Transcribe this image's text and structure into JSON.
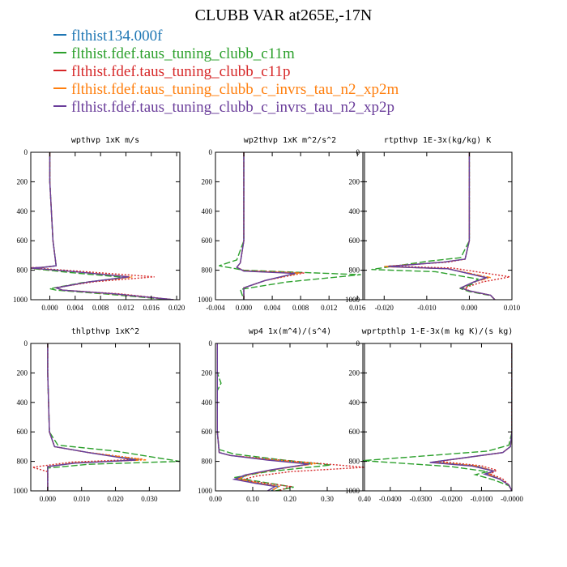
{
  "title": "CLUBB VAR at265E,-17N",
  "legend": [
    {
      "label": "flthist134.000f",
      "color": "#1f77b4"
    },
    {
      "label": "flthist.fdef.taus_tuning_clubb_c11m",
      "color": "#2ca02c"
    },
    {
      "label": "flthist.fdef.taus_tuning_clubb_c11p",
      "color": "#d62728"
    },
    {
      "label": "flthist.fdef.taus_tuning_clubb_c_invrs_tau_n2_xp2m",
      "color": "#ff7f0e"
    },
    {
      "label": "flthist.fdef.taus_tuning_clubb_c_invrs_tau_n2_xp2p",
      "color": "#6a3d9a"
    }
  ],
  "chart_data": [
    {
      "type": "line",
      "title": "wpthvp  1xK m/s",
      "xlim": [
        -0.003,
        0.0205
      ],
      "ylim": [
        0,
        1000
      ],
      "xticks": [
        0.0,
        0.004,
        0.008,
        0.012,
        0.016,
        0.02
      ],
      "xtick_labels": [
        "0.000",
        "0.004",
        "0.008",
        "0.012",
        "0.016",
        "0.020"
      ],
      "yticks": [
        0,
        200,
        400,
        600,
        800,
        1000
      ],
      "series": [
        {
          "x": [
            0.0,
            0.0,
            0.0005,
            0.001,
            -0.001,
            -0.003,
            0.004,
            0.0125,
            0.006,
            0.001,
            0.002,
            0.01,
            0.0195
          ],
          "y": [
            0,
            200,
            600,
            770,
            780,
            785,
            810,
            845,
            880,
            920,
            935,
            960,
            1000
          ]
        },
        {
          "x": [
            0.0,
            0.0,
            0.0005,
            0.001,
            -0.001,
            -0.003,
            0.003,
            0.012,
            0.005,
            0.0,
            0.001,
            0.009,
            0.019
          ],
          "y": [
            0,
            200,
            600,
            770,
            780,
            788,
            815,
            850,
            885,
            925,
            935,
            962,
            1000
          ]
        },
        {
          "x": [
            0.0,
            0.0,
            0.0005,
            0.001,
            -0.001,
            -0.003,
            0.005,
            0.0165,
            0.007,
            0.001,
            0.002,
            0.011,
            0.0195
          ],
          "y": [
            0,
            200,
            600,
            770,
            780,
            783,
            808,
            845,
            878,
            918,
            935,
            960,
            1000
          ]
        },
        {
          "x": [
            0.0,
            0.0,
            0.0005,
            0.001,
            -0.001,
            -0.003,
            0.004,
            0.013,
            0.006,
            0.001,
            0.002,
            0.01,
            0.0195
          ],
          "y": [
            0,
            200,
            600,
            770,
            780,
            786,
            810,
            846,
            880,
            920,
            935,
            961,
            1000
          ]
        },
        {
          "x": [
            0.0,
            0.0,
            0.0005,
            0.001,
            -0.001,
            -0.003,
            0.004,
            0.0125,
            0.006,
            0.001,
            0.002,
            0.01,
            0.0195
          ],
          "y": [
            0,
            200,
            600,
            770,
            780,
            785,
            810,
            845,
            880,
            920,
            935,
            960,
            1000
          ]
        }
      ]
    },
    {
      "type": "line",
      "title": "wp2thvp  1xK m^2/s^2",
      "xlim": [
        -0.004,
        0.017
      ],
      "ylim": [
        0,
        1000
      ],
      "xticks": [
        -0.004,
        0.0,
        0.004,
        0.008,
        0.012,
        0.016
      ],
      "xtick_labels": [
        "-0.004",
        "0.000",
        "0.004",
        "0.008",
        "0.012",
        "0.016"
      ],
      "yticks": [
        0,
        200,
        400,
        600,
        800,
        1000
      ],
      "series": [
        {
          "x": [
            0.0,
            0.0,
            0.0,
            -0.0005,
            -0.001,
            0.0,
            0.0075,
            0.003,
            0.0,
            0.0
          ],
          "y": [
            0,
            200,
            600,
            750,
            780,
            805,
            820,
            870,
            920,
            1000
          ]
        },
        {
          "x": [
            0.0,
            0.0,
            0.0,
            -0.001,
            -0.0035,
            0.0,
            0.0165,
            0.006,
            -0.0005,
            0.0
          ],
          "y": [
            0,
            200,
            600,
            730,
            770,
            800,
            830,
            880,
            930,
            1000
          ]
        },
        {
          "x": [
            0.0,
            0.0,
            0.0,
            -0.0005,
            -0.001,
            0.0,
            0.0085,
            0.003,
            0.0,
            0.0
          ],
          "y": [
            0,
            200,
            600,
            750,
            780,
            803,
            818,
            870,
            920,
            1000
          ]
        },
        {
          "x": [
            0.0,
            0.0,
            0.0,
            -0.0005,
            -0.001,
            0.0,
            0.0078,
            0.003,
            0.0,
            0.0
          ],
          "y": [
            0,
            200,
            600,
            750,
            780,
            805,
            820,
            870,
            920,
            1000
          ]
        },
        {
          "x": [
            0.0,
            0.0,
            0.0,
            -0.0005,
            -0.001,
            0.0,
            0.0072,
            0.003,
            0.0,
            0.0
          ],
          "y": [
            0,
            200,
            600,
            750,
            780,
            806,
            822,
            870,
            920,
            1000
          ]
        }
      ]
    },
    {
      "type": "line",
      "title": "rtpthvp  1E-3x(kg/kg) K",
      "xlim": [
        -0.025,
        0.01
      ],
      "ylim": [
        0,
        1000
      ],
      "xticks": [
        -0.02,
        -0.01,
        0.0,
        0.01
      ],
      "xtick_labels": [
        "-0.020",
        "-0.010",
        "0.000",
        "0.010"
      ],
      "yticks": [
        0,
        200,
        400,
        600,
        800,
        1000
      ],
      "series": [
        {
          "x": [
            0.0,
            0.0,
            0.0,
            -0.001,
            -0.006,
            -0.02,
            -0.005,
            0.004,
            0.001,
            -0.002,
            0.0,
            0.005,
            0.006
          ],
          "y": [
            0,
            200,
            600,
            725,
            745,
            775,
            790,
            850,
            880,
            920,
            940,
            970,
            1000
          ]
        },
        {
          "x": [
            0.0,
            0.0,
            0.0,
            -0.002,
            -0.01,
            -0.023,
            -0.008,
            0.002,
            0.001,
            -0.002,
            0.0,
            0.005,
            0.006
          ],
          "y": [
            0,
            200,
            600,
            715,
            740,
            795,
            810,
            860,
            890,
            925,
            945,
            972,
            1000
          ]
        },
        {
          "x": [
            0.0,
            0.0,
            0.0,
            -0.001,
            -0.005,
            -0.019,
            -0.004,
            0.0095,
            0.003,
            -0.001,
            0.0,
            0.005,
            0.006
          ],
          "y": [
            0,
            200,
            600,
            725,
            745,
            772,
            785,
            845,
            880,
            918,
            940,
            970,
            1000
          ]
        },
        {
          "x": [
            0.0,
            0.0,
            0.0,
            -0.001,
            -0.006,
            -0.02,
            -0.005,
            0.005,
            0.001,
            -0.002,
            0.0,
            0.005,
            0.006
          ],
          "y": [
            0,
            200,
            600,
            725,
            745,
            776,
            790,
            850,
            880,
            920,
            940,
            970,
            1000
          ]
        },
        {
          "x": [
            0.0,
            0.0,
            0.0,
            -0.001,
            -0.006,
            -0.019,
            -0.005,
            0.004,
            0.001,
            -0.002,
            0.0,
            0.005,
            0.006
          ],
          "y": [
            0,
            200,
            600,
            725,
            745,
            775,
            790,
            851,
            880,
            920,
            940,
            970,
            1000
          ]
        }
      ]
    },
    {
      "type": "line",
      "title": "thlpthvp  1xK^2",
      "xlim": [
        -0.005,
        0.039
      ],
      "ylim": [
        0,
        1000
      ],
      "xticks": [
        0.0,
        0.01,
        0.02,
        0.03
      ],
      "xtick_labels": [
        "0.000",
        "0.010",
        "0.020",
        "0.030"
      ],
      "yticks": [
        0,
        200,
        400,
        600,
        800,
        1000
      ],
      "series": [
        {
          "x": [
            0.0,
            0.0,
            0.0005,
            0.002,
            0.012,
            0.027,
            0.008,
            0.0,
            0.0,
            0.0,
            0.0
          ],
          "y": [
            0,
            200,
            600,
            700,
            740,
            790,
            810,
            835,
            870,
            950,
            1000
          ]
        },
        {
          "x": [
            0.0,
            0.0,
            0.0005,
            0.003,
            0.02,
            0.039,
            0.012,
            0.0,
            0.0,
            0.0,
            0.0
          ],
          "y": [
            0,
            200,
            600,
            690,
            730,
            800,
            820,
            845,
            880,
            950,
            1000
          ]
        },
        {
          "x": [
            0.0,
            0.0,
            0.0005,
            0.002,
            0.012,
            0.028,
            0.007,
            -0.0045,
            0.0,
            0.0,
            0.0
          ],
          "y": [
            0,
            200,
            600,
            700,
            740,
            785,
            805,
            840,
            870,
            950,
            1000
          ]
        },
        {
          "x": [
            0.0,
            0.0,
            0.0005,
            0.002,
            0.012,
            0.029,
            0.008,
            0.0,
            0.0,
            0.0,
            0.0
          ],
          "y": [
            0,
            200,
            600,
            700,
            740,
            790,
            810,
            835,
            870,
            950,
            1000
          ]
        },
        {
          "x": [
            0.0,
            0.0,
            0.0005,
            0.002,
            0.012,
            0.026,
            0.008,
            0.0,
            0.0,
            0.0,
            0.0
          ],
          "y": [
            0,
            200,
            600,
            700,
            740,
            792,
            812,
            835,
            870,
            950,
            1000
          ]
        }
      ]
    },
    {
      "type": "line",
      "title": "wp4  1x(m^4)/(s^4)",
      "xlim": [
        0.0,
        0.4
      ],
      "ylim": [
        0,
        1000
      ],
      "xticks": [
        0.0,
        0.1,
        0.2,
        0.3,
        0.4
      ],
      "xtick_labels": [
        "0.00",
        "0.10",
        "0.20",
        "0.30",
        "0.40"
      ],
      "yticks": [
        0,
        200,
        400,
        600,
        800,
        1000
      ],
      "series": [
        {
          "x": [
            0.005,
            0.005,
            0.005,
            0.01,
            0.04,
            0.15,
            0.26,
            0.16,
            0.09,
            0.06,
            0.12,
            0.17,
            0.15
          ],
          "y": [
            0,
            200,
            600,
            740,
            760,
            790,
            815,
            855,
            890,
            920,
            950,
            970,
            1000
          ]
        },
        {
          "x": [
            0.005,
            0.005,
            0.015,
            0.005,
            0.005,
            0.01,
            0.05,
            0.18,
            0.31,
            0.14,
            0.05,
            0.15,
            0.21,
            0.16
          ],
          "y": [
            0,
            200,
            270,
            320,
            600,
            720,
            750,
            790,
            825,
            870,
            910,
            950,
            975,
            1000
          ]
        },
        {
          "x": [
            0.005,
            0.005,
            0.005,
            0.01,
            0.04,
            0.17,
            0.4,
            0.2,
            0.11,
            0.07,
            0.14,
            0.2,
            0.17
          ],
          "y": [
            0,
            200,
            600,
            740,
            760,
            790,
            840,
            870,
            900,
            925,
            950,
            970,
            1000
          ]
        },
        {
          "x": [
            0.005,
            0.005,
            0.005,
            0.01,
            0.04,
            0.15,
            0.27,
            0.16,
            0.09,
            0.06,
            0.12,
            0.17,
            0.15
          ],
          "y": [
            0,
            200,
            600,
            740,
            760,
            790,
            815,
            855,
            890,
            920,
            950,
            970,
            1000
          ]
        },
        {
          "x": [
            0.005,
            0.005,
            0.005,
            0.01,
            0.04,
            0.14,
            0.25,
            0.15,
            0.08,
            0.05,
            0.11,
            0.16,
            0.14
          ],
          "y": [
            0,
            200,
            600,
            740,
            760,
            792,
            818,
            857,
            892,
            922,
            950,
            970,
            1000
          ]
        }
      ]
    },
    {
      "type": "line",
      "title": "wprtpthlp  1-E-3x(m kg K)/(s kg)",
      "xlim": [
        -0.049,
        0.0
      ],
      "ylim": [
        0,
        1000
      ],
      "xticks": [
        -0.04,
        -0.03,
        -0.02,
        -0.01,
        0.0
      ],
      "xtick_labels": [
        "-0.0400",
        "-0.0300",
        "-0.0200",
        "-0.0100",
        "-0.0000"
      ],
      "yticks": [
        0,
        200,
        400,
        600,
        800,
        1000
      ],
      "series": [
        {
          "x": [
            0.0,
            0.0,
            0.0,
            -0.0005,
            -0.003,
            -0.026,
            -0.012,
            -0.006,
            -0.008,
            -0.004,
            -0.001,
            0.0
          ],
          "y": [
            0,
            200,
            600,
            700,
            740,
            805,
            830,
            865,
            885,
            920,
            960,
            1000
          ]
        },
        {
          "x": [
            0.0,
            0.0,
            0.0,
            -0.001,
            -0.008,
            -0.049,
            -0.02,
            -0.008,
            -0.012,
            -0.006,
            -0.001,
            0.0
          ],
          "y": [
            0,
            200,
            600,
            690,
            730,
            795,
            835,
            870,
            890,
            925,
            965,
            1000
          ]
        },
        {
          "x": [
            0.0,
            0.0,
            0.0,
            -0.0005,
            -0.003,
            -0.024,
            -0.01,
            -0.005,
            -0.007,
            -0.003,
            -0.001,
            0.0
          ],
          "y": [
            0,
            200,
            600,
            700,
            740,
            800,
            830,
            860,
            885,
            920,
            960,
            1000
          ]
        },
        {
          "x": [
            0.0,
            0.0,
            0.0,
            -0.0005,
            -0.003,
            -0.026,
            -0.012,
            -0.006,
            -0.008,
            -0.004,
            -0.001,
            0.0
          ],
          "y": [
            0,
            200,
            600,
            700,
            740,
            805,
            830,
            865,
            885,
            920,
            960,
            1000
          ]
        },
        {
          "x": [
            0.0,
            0.0,
            0.0,
            -0.0005,
            -0.003,
            -0.027,
            -0.013,
            -0.006,
            -0.009,
            -0.004,
            -0.001,
            0.0
          ],
          "y": [
            0,
            200,
            600,
            700,
            740,
            807,
            832,
            866,
            886,
            921,
            960,
            1000
          ]
        }
      ]
    }
  ]
}
